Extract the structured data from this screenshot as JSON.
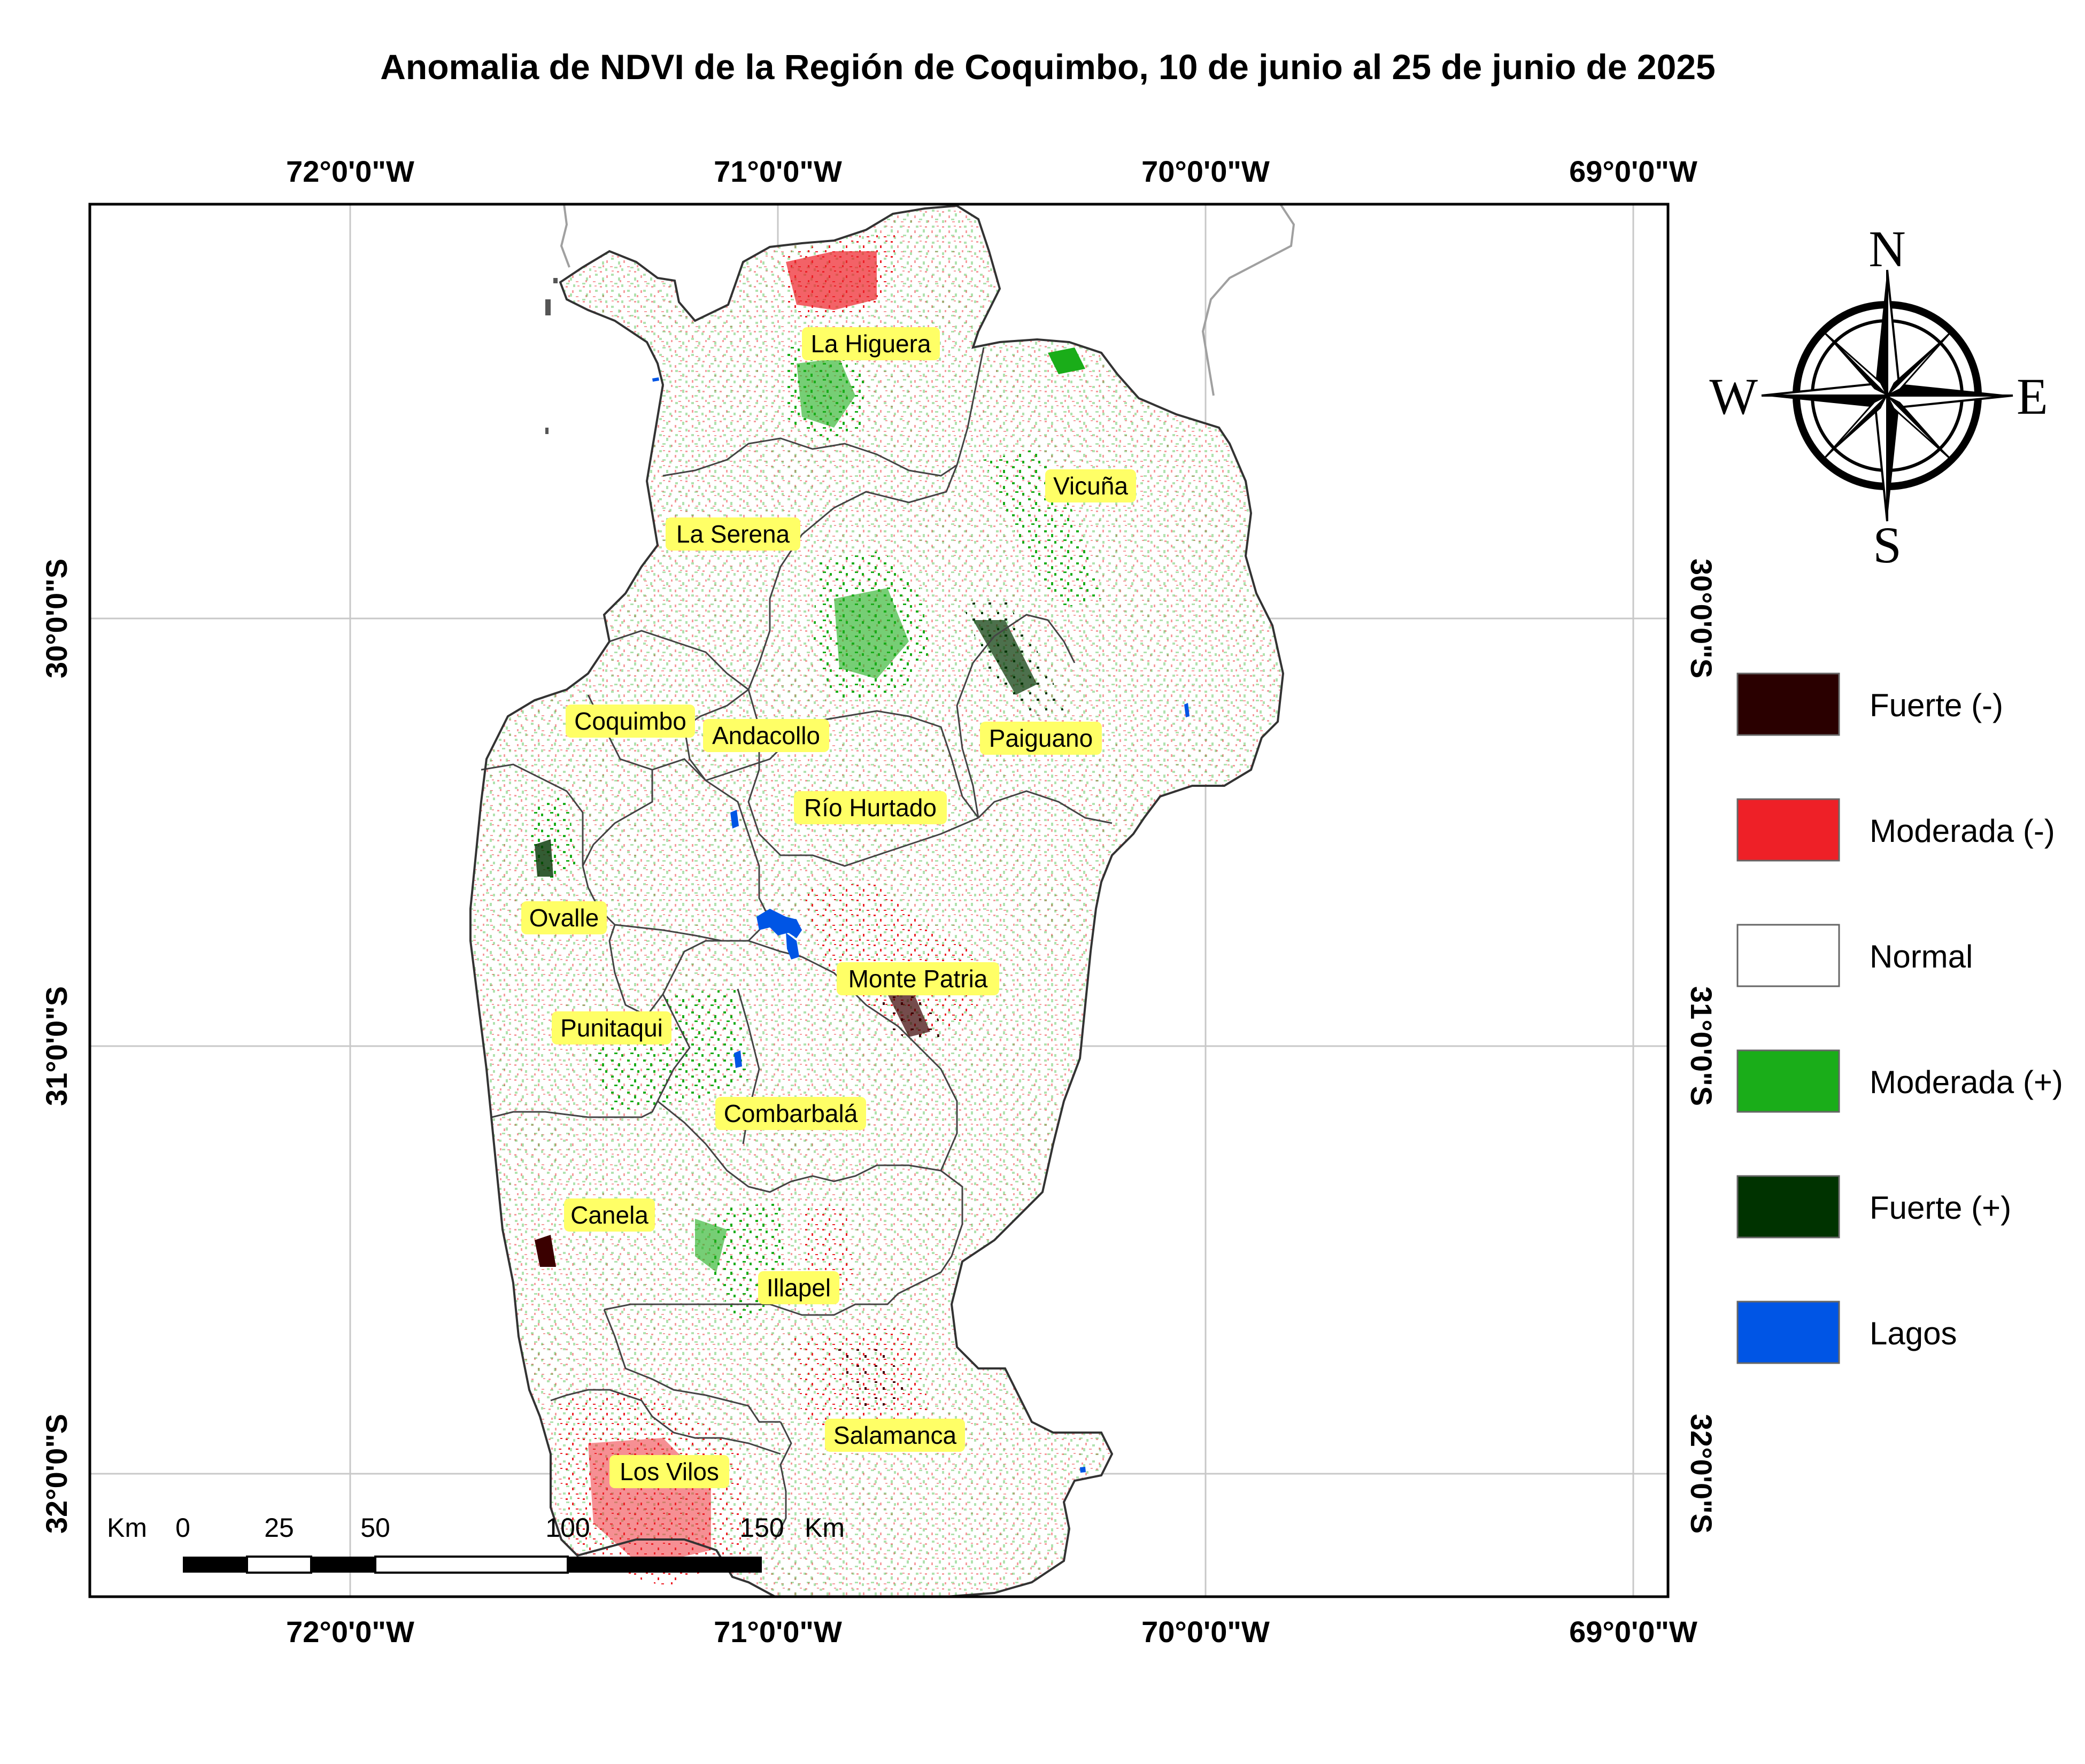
{
  "title": "Anomalia de NDVI de la Región de Coquimbo, 10 de junio al 25 de junio de 2025",
  "graticule": {
    "longitudes": [
      "72°0'0\"W",
      "71°0'0\"W",
      "70°0'0\"W",
      "69°0'0\"W"
    ],
    "latitudes": [
      "30°0'0\"S",
      "31°0'0\"S",
      "32°0'0\"S"
    ]
  },
  "communes": [
    "La Higuera",
    "Vicuña",
    "La Serena",
    "Coquimbo",
    "Andacollo",
    "Paiguano",
    "Río Hurtado",
    "Ovalle",
    "Monte Patria",
    "Punitaqui",
    "Combarbalá",
    "Canela",
    "Illapel",
    "Salamanca",
    "Los Vilos"
  ],
  "compass": {
    "n": "N",
    "s": "S",
    "e": "E",
    "w": "W"
  },
  "legend": {
    "items": [
      {
        "label": "Fuerte (-)",
        "color": "#2a0000"
      },
      {
        "label": "Moderada (-)",
        "color": "#ee2027"
      },
      {
        "label": "Normal",
        "color": "#ffffff"
      },
      {
        "label": "Moderada (+)",
        "color": "#1aad19"
      },
      {
        "label": "Fuerte (+)",
        "color": "#003300"
      },
      {
        "label": "Lagos",
        "color": "#0055e5"
      }
    ]
  },
  "scale_bar": {
    "unit_left": "Km",
    "unit_right": "Km",
    "ticks": [
      "0",
      "25",
      "50",
      "100",
      "150"
    ]
  },
  "colors": {
    "label_bg": "#ffff66",
    "border": "#333333",
    "grid": "#c8c8c8"
  }
}
